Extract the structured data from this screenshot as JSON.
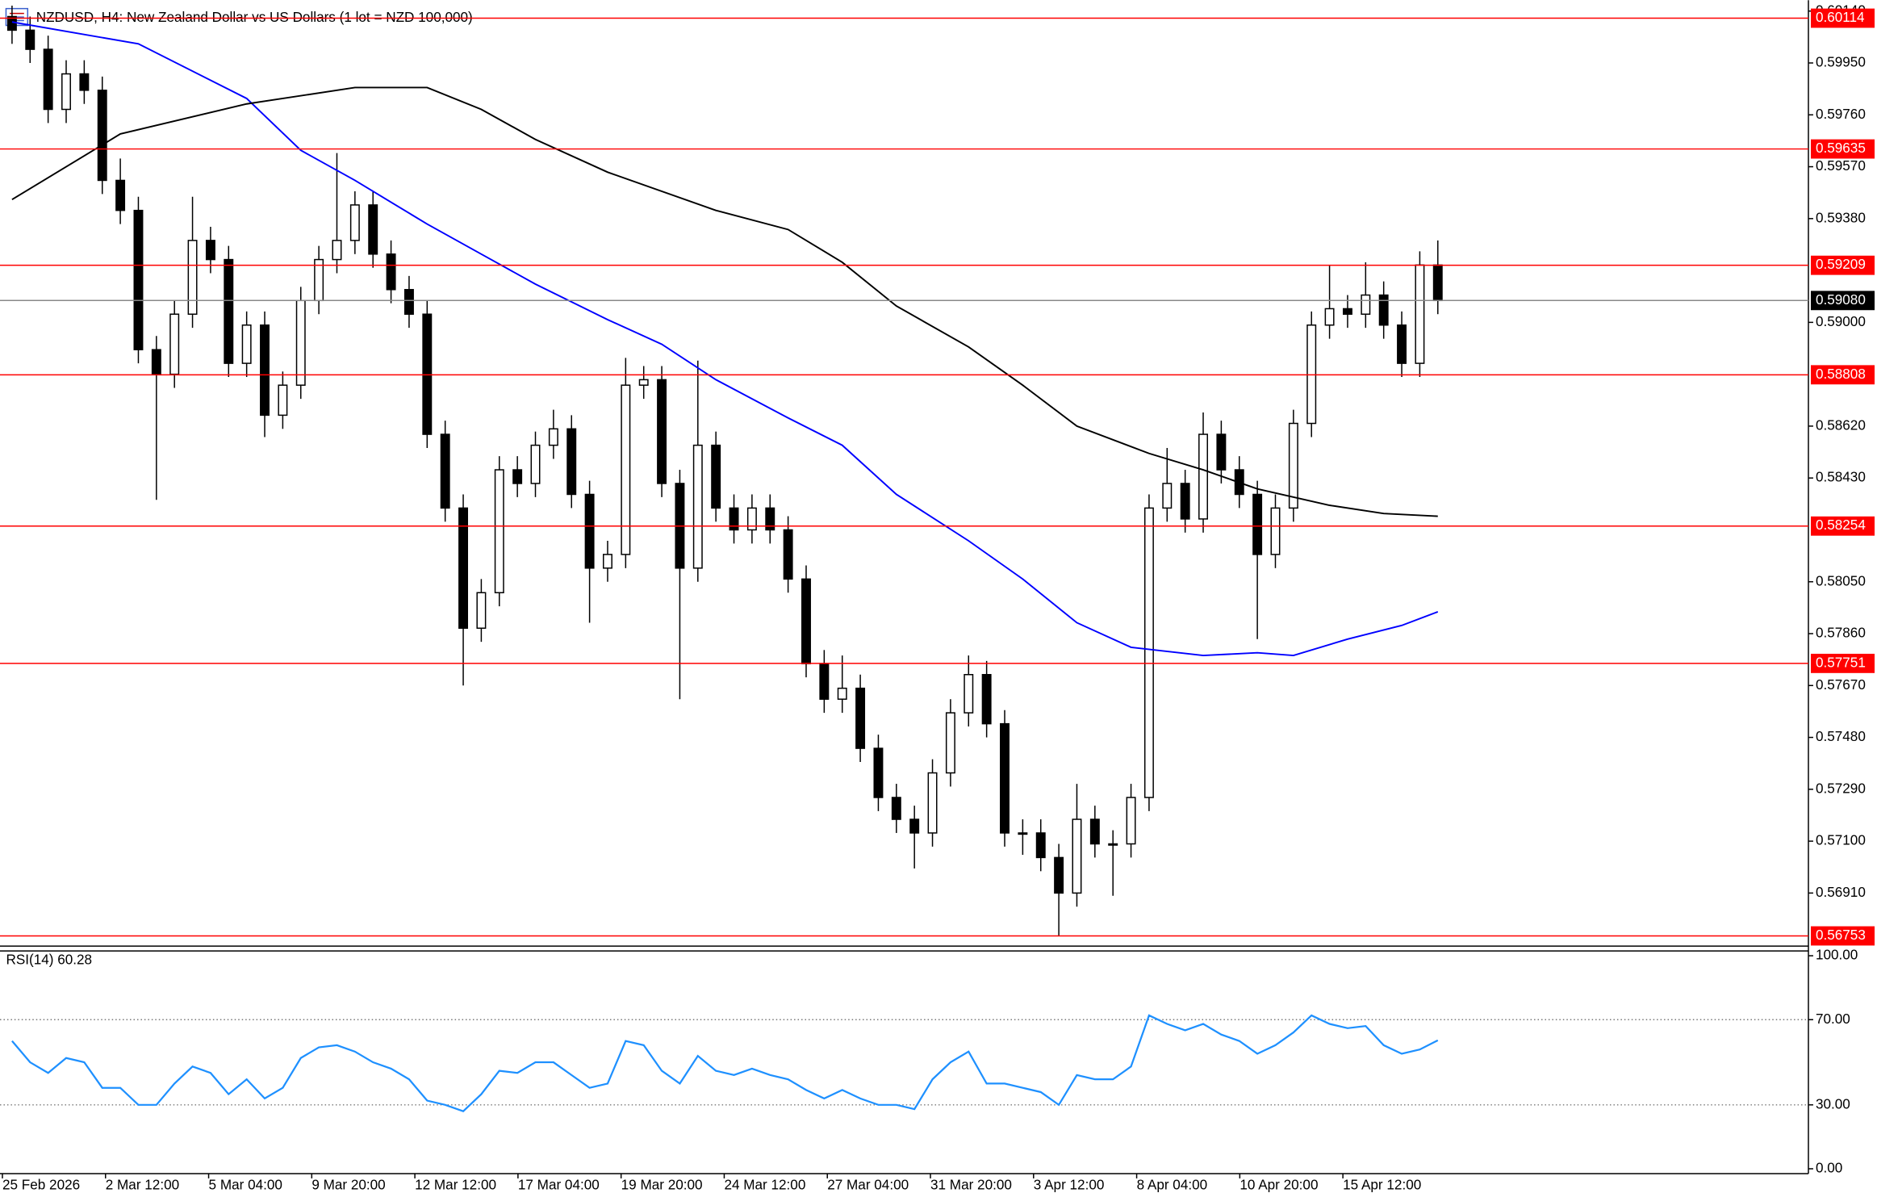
{
  "chart_data": {
    "type": "candlestick",
    "title": "NZDUSD, H4:  New Zealand Dollar vs US Dollars (1 lot = NZD 100,000)",
    "open": [
      0.6012,
      0.6007,
      0.6,
      0.5978,
      0.5991,
      0.5985,
      0.5952,
      0.5941,
      0.589,
      0.5881,
      0.5903,
      0.593,
      0.5923,
      0.5885,
      0.5899,
      0.5866,
      0.5877,
      0.5908,
      0.5923,
      0.593,
      0.5943,
      0.5925,
      0.5912,
      0.5903,
      0.5859,
      0.5832,
      0.5788,
      0.5801,
      0.5846,
      0.5841,
      0.5855,
      0.5861,
      0.5837,
      0.581,
      0.5815,
      0.5877,
      0.5879,
      0.5841,
      0.581,
      0.5855,
      0.5832,
      0.5824,
      0.5832,
      0.5824,
      0.5806,
      0.5775,
      0.5762,
      0.5766,
      0.5744,
      0.5726,
      0.5718,
      0.5713,
      0.5735,
      0.5757,
      0.5771,
      0.5753,
      0.5713,
      0.5713,
      0.5704,
      0.5691,
      0.5718,
      0.5709,
      0.5709,
      0.5726,
      0.5832,
      0.5841,
      0.5828,
      0.5859,
      0.5846,
      0.5837,
      0.5815,
      0.5832,
      0.5863,
      0.5899,
      0.5905,
      0.5903,
      0.591,
      0.5899,
      0.5885,
      0.5921
    ],
    "high": [
      0.6016,
      0.6012,
      0.6005,
      0.5996,
      0.5996,
      0.599,
      0.596,
      0.5946,
      0.5895,
      0.5908,
      0.5946,
      0.5935,
      0.5928,
      0.5904,
      0.5904,
      0.5882,
      0.5913,
      0.5928,
      0.5962,
      0.5948,
      0.5948,
      0.593,
      0.5917,
      0.5908,
      0.5864,
      0.5837,
      0.5806,
      0.5851,
      0.5851,
      0.586,
      0.5868,
      0.5866,
      0.5842,
      0.582,
      0.5887,
      0.5884,
      0.5884,
      0.5846,
      0.5886,
      0.586,
      0.5837,
      0.5837,
      0.5837,
      0.5829,
      0.5811,
      0.578,
      0.5778,
      0.5771,
      0.5749,
      0.5731,
      0.5723,
      0.574,
      0.5762,
      0.5778,
      0.5776,
      0.5758,
      0.5718,
      0.5718,
      0.5709,
      0.5731,
      0.5723,
      0.5714,
      0.5731,
      0.5837,
      0.5854,
      0.5846,
      0.5867,
      0.5864,
      0.5851,
      0.5842,
      0.5837,
      0.5868,
      0.5904,
      0.5921,
      0.591,
      0.5922,
      0.5915,
      0.5904,
      0.5926,
      0.593
    ],
    "low": [
      0.6002,
      0.5995,
      0.5973,
      0.5973,
      0.598,
      0.5947,
      0.5936,
      0.5885,
      0.5835,
      0.5876,
      0.5898,
      0.5918,
      0.588,
      0.588,
      0.5858,
      0.5861,
      0.5872,
      0.5903,
      0.5918,
      0.5925,
      0.592,
      0.5907,
      0.5898,
      0.5854,
      0.5827,
      0.5767,
      0.5783,
      0.5796,
      0.5836,
      0.5836,
      0.585,
      0.5832,
      0.579,
      0.5805,
      0.581,
      0.5872,
      0.5836,
      0.5762,
      0.5805,
      0.5827,
      0.5819,
      0.5819,
      0.5819,
      0.5801,
      0.577,
      0.5757,
      0.5757,
      0.5739,
      0.5721,
      0.5713,
      0.57,
      0.5708,
      0.573,
      0.5752,
      0.5748,
      0.5708,
      0.5705,
      0.5699,
      0.56753,
      0.5686,
      0.5704,
      0.569,
      0.5704,
      0.5721,
      0.5827,
      0.5823,
      0.5823,
      0.5841,
      0.5832,
      0.5784,
      0.581,
      0.5827,
      0.5858,
      0.5894,
      0.5898,
      0.5898,
      0.5894,
      0.588,
      0.588,
      0.5903
    ],
    "close": [
      0.6007,
      0.6,
      0.5978,
      0.5991,
      0.5985,
      0.5952,
      0.5941,
      0.589,
      0.5881,
      0.5903,
      0.593,
      0.5923,
      0.5885,
      0.5899,
      0.5866,
      0.5877,
      0.5908,
      0.5923,
      0.593,
      0.5943,
      0.5925,
      0.5912,
      0.5903,
      0.5859,
      0.5832,
      0.5788,
      0.5801,
      0.5846,
      0.5841,
      0.5855,
      0.5861,
      0.5837,
      0.581,
      0.5815,
      0.5877,
      0.5879,
      0.5841,
      0.581,
      0.5855,
      0.5832,
      0.5824,
      0.5832,
      0.5824,
      0.5806,
      0.5775,
      0.5762,
      0.5766,
      0.5744,
      0.5726,
      0.5718,
      0.5713,
      0.5735,
      0.5757,
      0.5771,
      0.5753,
      0.5713,
      0.5713,
      0.5704,
      0.5691,
      0.5718,
      0.5709,
      0.5709,
      0.5726,
      0.5832,
      0.5841,
      0.5828,
      0.5859,
      0.5846,
      0.5837,
      0.5815,
      0.5832,
      0.5863,
      0.5899,
      0.5905,
      0.5903,
      0.591,
      0.5899,
      0.5885,
      0.5921,
      0.5908
    ],
    "moving_averages": [
      {
        "color": "#0000ff",
        "x": [
          0,
          7,
          13,
          16,
          19,
          23,
          26,
          29,
          33,
          36,
          39,
          43,
          46,
          49,
          53,
          56,
          59,
          62,
          66,
          69,
          71,
          74,
          77,
          79
        ],
        "values": [
          0.601,
          0.6002,
          0.5982,
          0.5963,
          0.5952,
          0.5936,
          0.5925,
          0.5914,
          0.5901,
          0.5892,
          0.5879,
          0.5865,
          0.5855,
          0.5837,
          0.582,
          0.5806,
          0.579,
          0.5781,
          0.5778,
          0.5779,
          0.5778,
          0.5784,
          0.5789,
          0.5794
        ]
      },
      {
        "color": "#000000",
        "x": [
          0,
          6,
          13,
          19,
          23,
          26,
          29,
          33,
          39,
          43,
          46,
          49,
          53,
          56,
          59,
          63,
          66,
          69,
          73,
          76,
          79
        ],
        "values": [
          0.5945,
          0.5969,
          0.598,
          0.5986,
          0.5986,
          0.5978,
          0.5967,
          0.5955,
          0.5941,
          0.5934,
          0.5922,
          0.5906,
          0.5891,
          0.5877,
          0.5862,
          0.5852,
          0.5846,
          0.5839,
          0.5833,
          0.583,
          0.5829
        ]
      }
    ],
    "ylim": [
      0.5672,
      0.6018
    ],
    "yticks": [
      {
        "value": 0.5691,
        "label": "0.56910"
      },
      {
        "value": 0.571,
        "label": "0.57100"
      },
      {
        "value": 0.5729,
        "label": "0.57290"
      },
      {
        "value": 0.5748,
        "label": "0.57480"
      },
      {
        "value": 0.5767,
        "label": "0.57670"
      },
      {
        "value": 0.5786,
        "label": "0.57860"
      },
      {
        "value": 0.5805,
        "label": "0.58050"
      },
      {
        "value": 0.5843,
        "label": "0.58430"
      },
      {
        "value": 0.5862,
        "label": "0.58620"
      },
      {
        "value": 0.59,
        "label": "0.59000"
      },
      {
        "value": 0.5938,
        "label": "0.59380"
      },
      {
        "value": 0.5957,
        "label": "0.59570"
      },
      {
        "value": 0.5976,
        "label": "0.59760"
      },
      {
        "value": 0.5995,
        "label": "0.59950"
      },
      {
        "value": 0.6014,
        "label": "0.60140"
      }
    ],
    "levels": [
      0.60114,
      0.59635,
      0.59209,
      0.58808,
      0.58254,
      0.57751,
      0.56753
    ],
    "level_color": "#ff0000",
    "current_price": {
      "value": 0.5908,
      "label": "0.59080"
    },
    "xtick_labels": [
      "25 Feb 2026",
      "2 Mar 12:00",
      "5 Mar 04:00",
      "9 Mar 20:00",
      "12 Mar 12:00",
      "17 Mar 04:00",
      "19 Mar 20:00",
      "24 Mar 12:00",
      "27 Mar 04:00",
      "31 Mar 20:00",
      "3 Apr 12:00",
      "8 Apr 04:00",
      "10 Apr 20:00",
      "15 Apr 12:00"
    ],
    "rsi": {
      "label": "RSI(14) 60.28",
      "color": "#1e90ff",
      "values": [
        60,
        50,
        45,
        52,
        50,
        38,
        38,
        30,
        30,
        40,
        48,
        45,
        35,
        42,
        33,
        38,
        52,
        57,
        58,
        55,
        50,
        47,
        42,
        32,
        30,
        27,
        35,
        46,
        45,
        50,
        50,
        44,
        38,
        40,
        60,
        58,
        46,
        40,
        53,
        46,
        44,
        47,
        44,
        42,
        37,
        33,
        37,
        33,
        30,
        30,
        28,
        42,
        50,
        55,
        40,
        40,
        38,
        36,
        30,
        44,
        42,
        42,
        48,
        72,
        68,
        65,
        68,
        63,
        60,
        54,
        58,
        64,
        72,
        68,
        66,
        67,
        58,
        54,
        56,
        60.28
      ],
      "ylim": [
        0,
        100
      ],
      "yticks": [
        {
          "value": 100,
          "label": "100.00"
        },
        {
          "value": 70,
          "label": "70.00"
        },
        {
          "value": 30,
          "label": "30.00"
        },
        {
          "value": 0,
          "label": "0.00"
        }
      ]
    }
  }
}
